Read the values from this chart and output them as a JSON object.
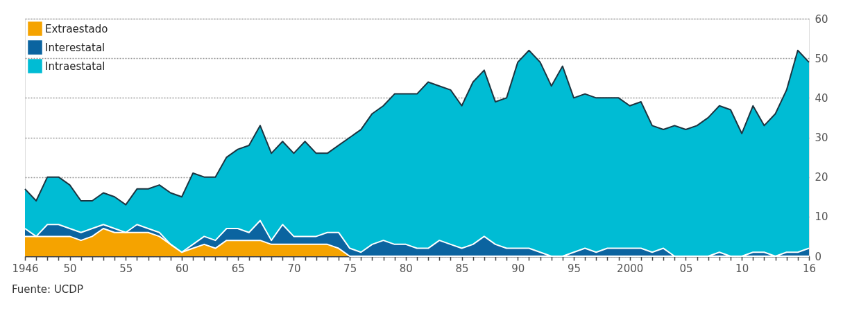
{
  "chart_data": {
    "type": "area",
    "stacked": true,
    "x": [
      1946,
      1947,
      1948,
      1949,
      1950,
      1951,
      1952,
      1953,
      1954,
      1955,
      1956,
      1957,
      1958,
      1959,
      1960,
      1961,
      1962,
      1963,
      1964,
      1965,
      1966,
      1967,
      1968,
      1969,
      1970,
      1971,
      1972,
      1973,
      1974,
      1975,
      1976,
      1977,
      1978,
      1979,
      1980,
      1981,
      1982,
      1983,
      1984,
      1985,
      1986,
      1987,
      1988,
      1989,
      1990,
      1991,
      1992,
      1993,
      1994,
      1995,
      1996,
      1997,
      1998,
      1999,
      2000,
      2001,
      2002,
      2003,
      2004,
      2005,
      2006,
      2007,
      2008,
      2009,
      2010,
      2011,
      2012,
      2013,
      2014,
      2015,
      2016
    ],
    "series": [
      {
        "name": "Extraestado",
        "color": "#f5a300",
        "values": [
          5,
          5,
          5,
          5,
          5,
          4,
          5,
          7,
          6,
          6,
          6,
          6,
          5,
          3,
          1,
          2,
          3,
          2,
          4,
          4,
          4,
          4,
          3,
          3,
          3,
          3,
          3,
          3,
          2,
          0,
          0,
          0,
          0,
          0,
          0,
          0,
          0,
          0,
          0,
          0,
          0,
          0,
          0,
          0,
          0,
          0,
          0,
          0,
          0,
          0,
          0,
          0,
          0,
          0,
          0,
          0,
          0,
          0,
          0,
          0,
          0,
          0,
          0,
          0,
          0,
          0,
          0,
          0,
          0,
          0,
          0
        ]
      },
      {
        "name": "Interestatal",
        "color": "#0b64a0",
        "values": [
          2,
          0,
          3,
          3,
          2,
          2,
          2,
          1,
          1,
          0,
          2,
          1,
          1,
          0,
          0,
          1,
          2,
          2,
          3,
          3,
          2,
          5,
          1,
          5,
          2,
          2,
          2,
          3,
          4,
          2,
          1,
          3,
          4,
          3,
          3,
          2,
          2,
          4,
          3,
          2,
          3,
          5,
          3,
          2,
          2,
          2,
          1,
          0,
          0,
          1,
          2,
          1,
          2,
          2,
          2,
          2,
          1,
          2,
          0,
          0,
          0,
          0,
          1,
          0,
          0,
          1,
          1,
          0,
          1,
          1,
          2
        ]
      },
      {
        "name": "Intraestatal",
        "color": "#00bcd4",
        "values": [
          10,
          9,
          12,
          12,
          11,
          8,
          7,
          8,
          8,
          7,
          9,
          10,
          12,
          13,
          14,
          18,
          15,
          16,
          18,
          20,
          22,
          24,
          22,
          21,
          21,
          24,
          21,
          20,
          22,
          28,
          31,
          33,
          34,
          38,
          38,
          39,
          42,
          39,
          39,
          36,
          41,
          42,
          36,
          38,
          47,
          50,
          48,
          43,
          48,
          39,
          39,
          39,
          38,
          38,
          36,
          37,
          32,
          30,
          33,
          32,
          33,
          35,
          37,
          37,
          31,
          37,
          32,
          36,
          41,
          51,
          47
        ]
      }
    ],
    "xlim": [
      1946,
      2016
    ],
    "xticks": [
      {
        "value": 1946,
        "label": "1946"
      },
      {
        "value": 1947,
        "label": null
      },
      {
        "value": 1948,
        "label": null
      },
      {
        "value": 1949,
        "label": null
      },
      {
        "value": 1950,
        "label": "50"
      },
      {
        "value": 1951,
        "label": null
      },
      {
        "value": 1952,
        "label": null
      },
      {
        "value": 1953,
        "label": null
      },
      {
        "value": 1954,
        "label": null
      },
      {
        "value": 1955,
        "label": "55"
      },
      {
        "value": 1956,
        "label": null
      },
      {
        "value": 1957,
        "label": null
      },
      {
        "value": 1958,
        "label": null
      },
      {
        "value": 1959,
        "label": null
      },
      {
        "value": 1960,
        "label": "60"
      },
      {
        "value": 1961,
        "label": null
      },
      {
        "value": 1962,
        "label": null
      },
      {
        "value": 1963,
        "label": null
      },
      {
        "value": 1964,
        "label": null
      },
      {
        "value": 1965,
        "label": "65"
      },
      {
        "value": 1966,
        "label": null
      },
      {
        "value": 1967,
        "label": null
      },
      {
        "value": 1968,
        "label": null
      },
      {
        "value": 1969,
        "label": null
      },
      {
        "value": 1970,
        "label": "70"
      },
      {
        "value": 1971,
        "label": null
      },
      {
        "value": 1972,
        "label": null
      },
      {
        "value": 1973,
        "label": null
      },
      {
        "value": 1974,
        "label": null
      },
      {
        "value": 1975,
        "label": "75"
      },
      {
        "value": 1976,
        "label": null
      },
      {
        "value": 1977,
        "label": null
      },
      {
        "value": 1978,
        "label": null
      },
      {
        "value": 1979,
        "label": null
      },
      {
        "value": 1980,
        "label": "80"
      },
      {
        "value": 1981,
        "label": null
      },
      {
        "value": 1982,
        "label": null
      },
      {
        "value": 1983,
        "label": null
      },
      {
        "value": 1984,
        "label": null
      },
      {
        "value": 1985,
        "label": "85"
      },
      {
        "value": 1986,
        "label": null
      },
      {
        "value": 1987,
        "label": null
      },
      {
        "value": 1988,
        "label": null
      },
      {
        "value": 1989,
        "label": null
      },
      {
        "value": 1990,
        "label": "90"
      },
      {
        "value": 1991,
        "label": null
      },
      {
        "value": 1992,
        "label": null
      },
      {
        "value": 1993,
        "label": null
      },
      {
        "value": 1994,
        "label": null
      },
      {
        "value": 1995,
        "label": "95"
      },
      {
        "value": 1996,
        "label": null
      },
      {
        "value": 1997,
        "label": null
      },
      {
        "value": 1998,
        "label": null
      },
      {
        "value": 1999,
        "label": null
      },
      {
        "value": 2000,
        "label": "2000"
      },
      {
        "value": 2001,
        "label": null
      },
      {
        "value": 2002,
        "label": null
      },
      {
        "value": 2003,
        "label": null
      },
      {
        "value": 2004,
        "label": null
      },
      {
        "value": 2005,
        "label": "05"
      },
      {
        "value": 2006,
        "label": null
      },
      {
        "value": 2007,
        "label": null
      },
      {
        "value": 2008,
        "label": null
      },
      {
        "value": 2009,
        "label": null
      },
      {
        "value": 2010,
        "label": "10"
      },
      {
        "value": 2011,
        "label": null
      },
      {
        "value": 2012,
        "label": null
      },
      {
        "value": 2013,
        "label": null
      },
      {
        "value": 2014,
        "label": null
      },
      {
        "value": 2015,
        "label": null
      },
      {
        "value": 2016,
        "label": "16"
      }
    ],
    "ylim": [
      0,
      60
    ],
    "yticks": [
      0,
      10,
      20,
      30,
      40,
      50,
      60
    ],
    "grid": "y",
    "legend": "top left",
    "annotations": [
      "Fuente: UCDP"
    ]
  }
}
